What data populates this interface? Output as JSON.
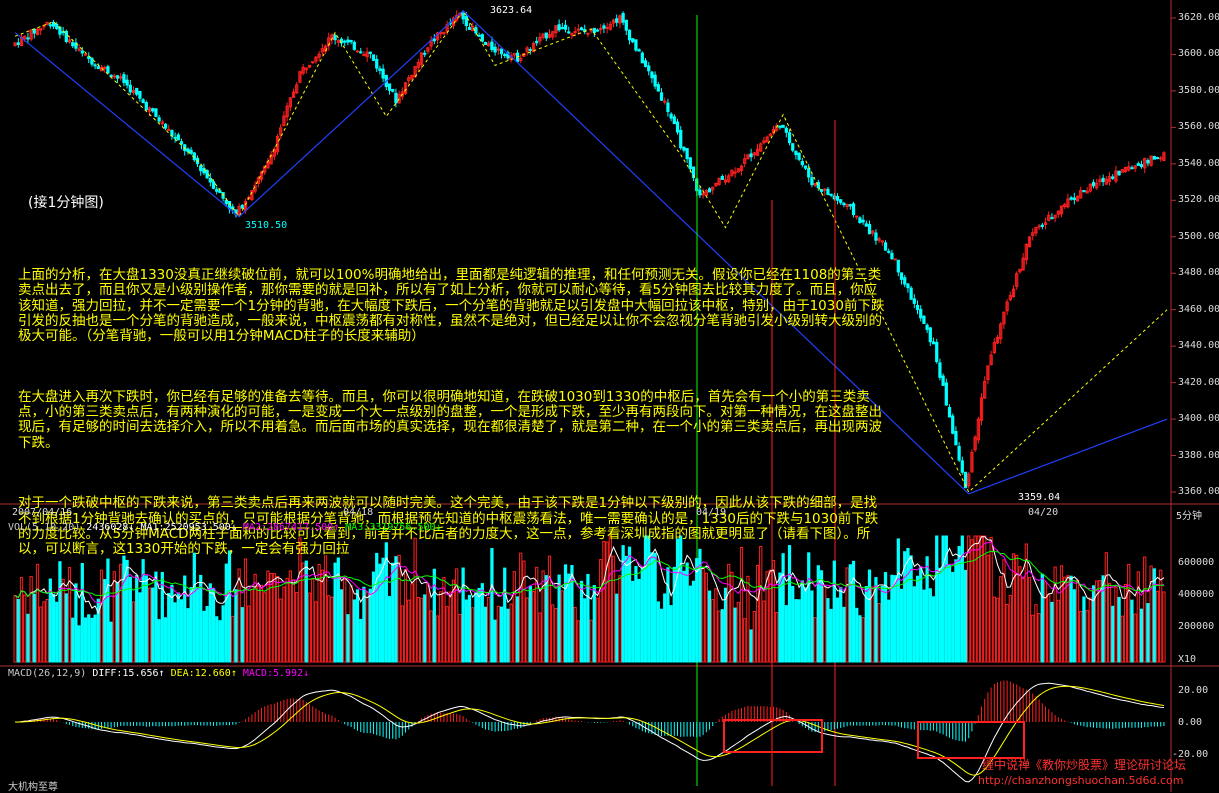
{
  "chart_data": {
    "type": "candlestick",
    "timeframe_label": "5分钟",
    "price_axis": {
      "ylim": [
        3360,
        3620
      ],
      "ticks": [
        3620,
        3600,
        3580,
        3560,
        3540,
        3520,
        3500,
        3480,
        3460,
        3440,
        3420,
        3400,
        3380,
        3360
      ]
    },
    "price_annotations": [
      {
        "text": "3623.64",
        "price": 3623.64
      },
      {
        "text": "3510.50",
        "price": 3510.5
      },
      {
        "text": "3359.04",
        "price": 3359.04
      }
    ],
    "date_ticks": [
      "2007/04/16",
      "04/18",
      "04/19",
      "04/20"
    ],
    "volume": {
      "header_name": "VOL(5,10,20)",
      "header_value": "2436028",
      "ma1": "MA1:2520953.500",
      "ma2": "MA2:2867417.500",
      "ma3": "MA3:3319756.500",
      "ticks": [
        "600000",
        "400000",
        "200000"
      ],
      "unit": "X10"
    },
    "macd": {
      "header_name": "MACD(26,12,9)",
      "diff": "DIFF:15.656",
      "dea": "DEA:12.660",
      "macd": "MACD:5.992",
      "ticks": [
        "20.00",
        "0.00",
        "-20.00"
      ]
    },
    "colors": {
      "up": "#ff2020",
      "down": "#00ffff",
      "ma1": "#ffffff",
      "ma2": "#ff00ff",
      "ma3": "#00ff00",
      "dea": "#ffff00",
      "zigzag": "#ffff00",
      "trend": "#2040ff"
    }
  },
  "overlay": {
    "label": "(接1分钟图)",
    "paragraph1": "上面的分析，在大盘1330没真正继续破位前，就可以100%明确地给出，里面都是纯逻辑的推理，和任何预测无关。假设你已经在1108的第三类卖点出去了，而且你又是小级别操作者，那你需要的就是回补，所以有了如上分析，你就可以耐心等待，看5分钟图去比较其力度了。而且，你应该知道，强力回拉，并不一定需要一个1分钟的背驰，在大幅度下跌后，一个分笔的背驰就足以引发盘中大幅回拉该中枢，特别，由于1030前下跌引发的反抽也是一个分笔的背驰造成，一般来说，中枢震荡都有对称性，虽然不是绝对，但已经足以让你不会忽视分笔背驰引发小级别转大级别的极大可能。（分笔背驰，一般可以用1分钟MACD柱子的长度来辅助）",
    "paragraph2": "在大盘进入再次下跌时，你已经有足够的准备去等待。而且，你可以很明确地知道，在跌破1030到1330的中枢后，首先会有一个小的第三类卖点，小的第三类卖点后，有两种演化的可能，一是变成一个大一点级别的盘整，一个是形成下跌，至少再有两段向下。对第一种情况，在这盘整出现后，有足够的时间去选择介入，所以不用着急。而后面市场的真实选择，现在都很清楚了，就是第二种，在一个小的第三类卖点后，再出现两波下跌。",
    "paragraph3": "对于一个跌破中枢的下跌来说，第三类卖点后再来两波就可以随时完美。这个完美，由于该下跌是1分钟以下级别的，因此从该下跌的细部，是找不到根据1分钟背驰去确认的买点的，只可能根据分笔背驰，而根据预先知道的中枢震荡看法，唯一需要确认的是，1330后的下跌与1030前下跌的力度比较。从5分钟MACD两柱子面积的比较可以看到，前者并不比后者的力度大，这一点，参考看深圳成指的图就更明显了（请看下图）。所以，可以断言，这1330开始的下跌，一定会有强力回拉"
  },
  "watermark": {
    "line1": "缠中说禅《教你炒股票》理论研讨论坛",
    "line2": "http://chanzhongshuochan.5d6d.com"
  },
  "footer_left": "大机构至尊"
}
